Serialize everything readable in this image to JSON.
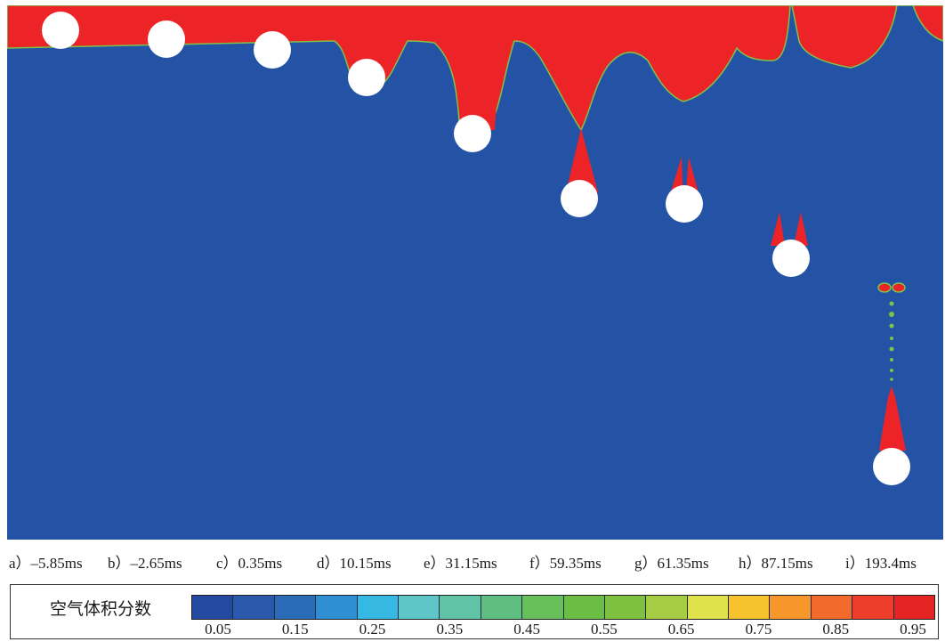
{
  "time_labels": [
    "a）–5.85ms",
    "b）–2.65ms",
    "c）0.35ms",
    "d）10.15ms",
    "e）31.15ms",
    "f）59.35ms",
    "g）61.35ms",
    "h）87.15ms",
    "i）193.4ms"
  ],
  "legend": {
    "title": "空气体积分数",
    "ticks": [
      "0.05",
      "0.15",
      "0.25",
      "0.35",
      "0.45",
      "0.55",
      "0.65",
      "0.75",
      "0.85",
      "0.95"
    ],
    "colors": [
      "#2449a0",
      "#2a58aa",
      "#2a6cb6",
      "#2f8fd2",
      "#35b9e2",
      "#5fc6c8",
      "#61c3a6",
      "#5fbe82",
      "#67c05a",
      "#6cbd44",
      "#7ec140",
      "#a6cc43",
      "#dfe24a",
      "#f6c22e",
      "#f7962a",
      "#f26b2c",
      "#ee3d2b",
      "#e42323"
    ]
  },
  "colors": {
    "water": "#2453a5",
    "air": "#ec2427",
    "sphere": "#ffffff",
    "interface": "#7fc24a"
  }
}
